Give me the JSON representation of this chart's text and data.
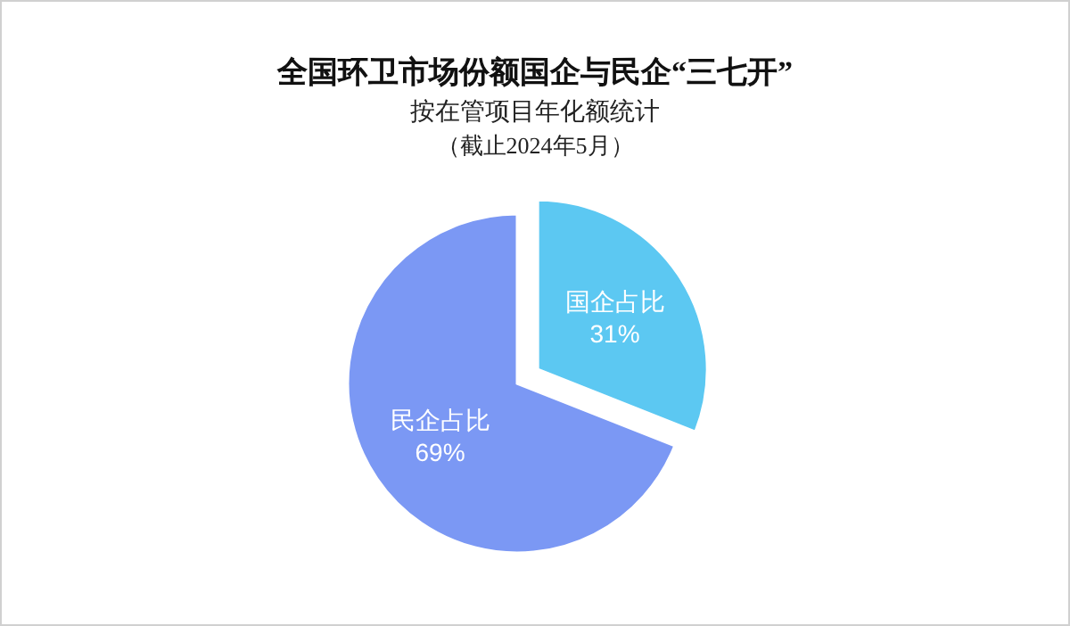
{
  "chart_data": {
    "type": "pie",
    "title": "全国环卫市场份额国企与民企“三七开”",
    "subtitle": "按在管项目年化额统计",
    "annotations": [
      "（截止2024年5月）"
    ],
    "categories": [
      "国企占比",
      "民企占比"
    ],
    "values": [
      31,
      69
    ],
    "value_labels": [
      "31%",
      "69%"
    ],
    "colors": [
      "#5cc8f2",
      "#7b98f4"
    ],
    "data_labels": true,
    "legend": false
  }
}
